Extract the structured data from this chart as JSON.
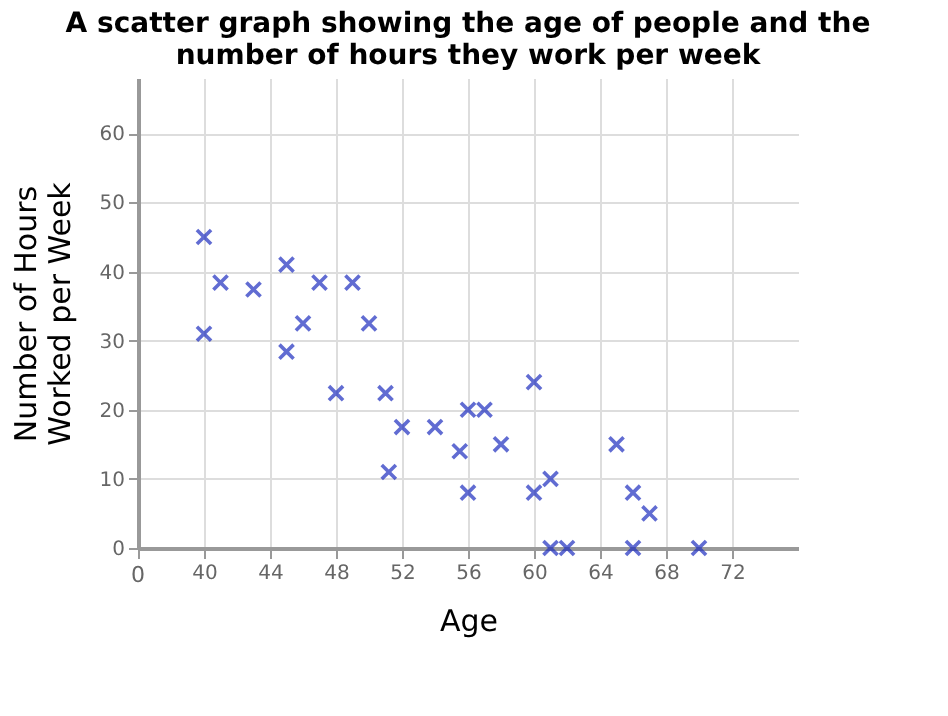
{
  "chart_data": {
    "type": "scatter",
    "title": "A scatter graph showing the age of people and the number of hours they work per week",
    "xlabel": "Age",
    "ylabel": "Number of Hours Worked per Week",
    "x": [
      40,
      40,
      41,
      43,
      45,
      45,
      46,
      47,
      48,
      49,
      50,
      51,
      51.2,
      52,
      54,
      55.5,
      56,
      57,
      56,
      58,
      60,
      60,
      61,
      61,
      62,
      65,
      66,
      67,
      66,
      70
    ],
    "series": [
      {
        "color": "#1f2fbf",
        "values": [
          45,
          31,
          38.4,
          37.4,
          41,
          28.4,
          32.5,
          38.4,
          22.4,
          38.4,
          32.5,
          22.4,
          11,
          17.5,
          17.5,
          14,
          20,
          20,
          8,
          15,
          24,
          8,
          10,
          0,
          0,
          15,
          8,
          5,
          0,
          0
        ]
      }
    ],
    "xlim": [
      36,
      76
    ],
    "xticks": [
      {
        "value": 36,
        "label": null
      },
      40,
      44,
      48,
      52,
      56,
      60,
      64,
      68,
      72
    ],
    "annotations": [
      "0"
    ],
    "ylim": [
      0,
      68
    ],
    "yticks": [
      0,
      10,
      20,
      30,
      40,
      50,
      60
    ],
    "grid": true,
    "marker": "cross"
  }
}
